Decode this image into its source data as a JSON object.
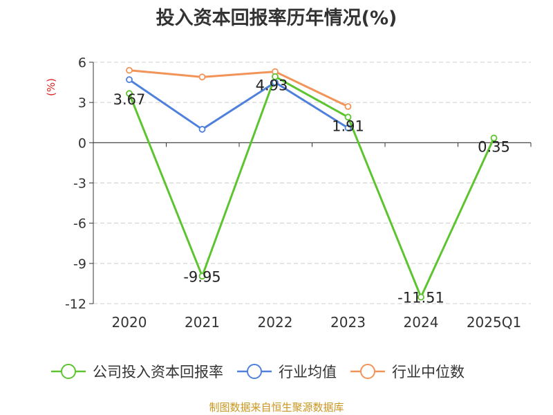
{
  "chart_data": {
    "type": "line",
    "title": "投入资本回报率历年情况(%)",
    "ylabel": "(%)",
    "categories": [
      "2020",
      "2021",
      "2022",
      "2023",
      "2024",
      "2025Q1"
    ],
    "yticks": [
      "6",
      "3",
      "0",
      "-3",
      "-6",
      "-9",
      "-12"
    ],
    "ylim": [
      -12,
      6
    ],
    "grid": true,
    "legend_position": "bottom",
    "series": [
      {
        "name": "公司投入资本回报率",
        "color": "#5cc42e",
        "values": [
          3.67,
          -9.95,
          4.93,
          1.91,
          -11.51,
          0.35
        ],
        "labels": [
          "3.67",
          "-9.95",
          "4.93",
          "1.91",
          "-11.51",
          "0.35"
        ]
      },
      {
        "name": "行业均值",
        "color": "#4f80dc",
        "values": [
          4.7,
          1.0,
          4.5,
          1.1,
          null,
          null
        ]
      },
      {
        "name": "行业中位数",
        "color": "#f29358",
        "values": [
          5.4,
          4.9,
          5.3,
          2.7,
          null,
          null
        ]
      }
    ]
  },
  "footer": "制图数据来自恒生聚源数据库"
}
